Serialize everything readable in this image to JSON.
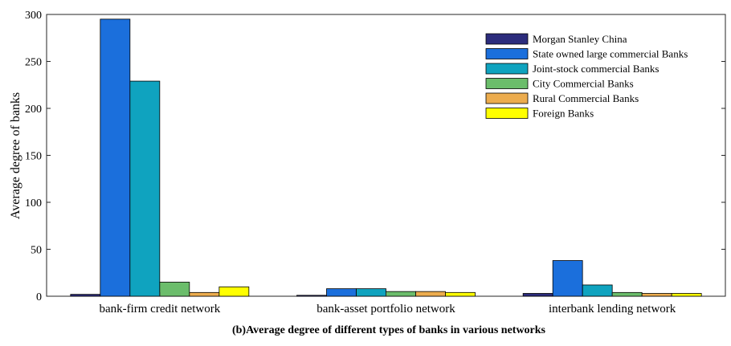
{
  "chart_data": {
    "type": "bar",
    "categories": [
      "bank-firm credit network",
      "bank-asset portfolio network",
      "interbank lending network"
    ],
    "series": [
      {
        "name": "Morgan Stanley China",
        "color": "#2c2c7c",
        "values": [
          2,
          1,
          3
        ]
      },
      {
        "name": "State owned large commercial Banks",
        "color": "#1b6fdc",
        "values": [
          295,
          8,
          38
        ]
      },
      {
        "name": "Joint-stock commercial Banks",
        "color": "#0fa3bf",
        "values": [
          229,
          8,
          12
        ]
      },
      {
        "name": "City Commercial Banks",
        "color": "#6bbd6b",
        "values": [
          15,
          5,
          4
        ]
      },
      {
        "name": "Rural Commercial Banks",
        "color": "#ecac4e",
        "values": [
          4,
          5,
          3
        ]
      },
      {
        "name": "Foreign Banks",
        "color": "#ffff00",
        "values": [
          10,
          4,
          3
        ]
      }
    ],
    "ylabel": "Average degree of banks",
    "ylim": [
      0,
      300
    ],
    "yticks": [
      0,
      50,
      100,
      150,
      200,
      250,
      300
    ],
    "legend_position": "top-right",
    "caption": "(b)Average degree of different types of banks in various networks"
  }
}
